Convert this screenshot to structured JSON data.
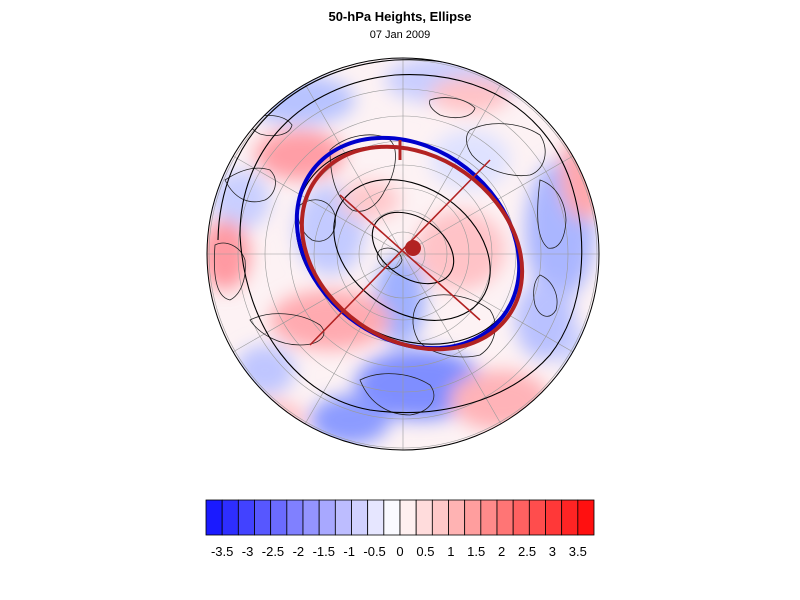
{
  "title": "50-hPa Heights, Ellipse",
  "subtitle": "07 Jan 2009",
  "colorbar": {
    "labels": [
      "-3.5",
      "-3",
      "-2.5",
      "-2",
      "-1.5",
      "-1",
      "-0.5",
      "0",
      "0.5",
      "1",
      "1.5",
      "2",
      "2.5",
      "3",
      "3.5"
    ],
    "colors": [
      "#1a1aff",
      "#2e2eff",
      "#4242ff",
      "#5757ff",
      "#6b6bff",
      "#8080ff",
      "#9494ff",
      "#a8a8ff",
      "#bdbdff",
      "#d1d1ff",
      "#e6e6ff",
      "#fafaff",
      "#fff0f0",
      "#ffdcdc",
      "#ffc8c8",
      "#ffb3b3",
      "#ff9e9e",
      "#ff8a8a",
      "#ff7575",
      "#ff6161",
      "#ff4d4d",
      "#ff3838",
      "#ff2424",
      "#ff1010"
    ]
  },
  "map": {
    "ellipse_colors": {
      "observed": "#b22222",
      "fit": "#0000cc"
    },
    "centroid_color": "#b22222"
  }
}
